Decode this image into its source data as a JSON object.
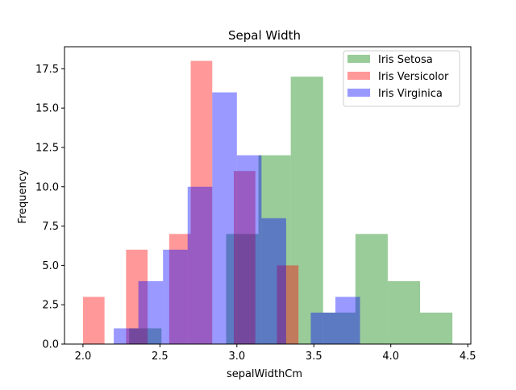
{
  "chart_data": {
    "type": "bar",
    "chart_kind": "overlapping histogram",
    "title": "Sepal Width",
    "xlabel": "sepalWidthCm",
    "ylabel": "Frequency",
    "xlim": [
      1.88,
      4.52
    ],
    "ylim": [
      0,
      18.9
    ],
    "x_ticks": [
      2.0,
      2.5,
      3.0,
      3.5,
      4.0,
      4.5
    ],
    "x_tick_labels": [
      "2.0",
      "2.5",
      "3.0",
      "3.5",
      "4.0",
      "4.5"
    ],
    "y_ticks": [
      0,
      2.5,
      5,
      7.5,
      10,
      12.5,
      15,
      17.5
    ],
    "y_tick_labels": [
      "0.0",
      "2.5",
      "5.0",
      "7.5",
      "10.0",
      "12.5",
      "15.0",
      "17.5"
    ],
    "grid": false,
    "legend_position": "top-right",
    "series": [
      {
        "name": "Iris Setosa",
        "color": "#008000",
        "opacity": 0.4,
        "bin_edges": [
          2.3,
          2.51,
          2.72,
          2.93,
          3.14,
          3.35,
          3.56,
          3.77,
          3.98,
          4.19,
          4.4
        ],
        "counts": [
          1,
          0,
          0,
          7,
          12,
          17,
          2,
          7,
          4,
          2
        ]
      },
      {
        "name": "Iris Versicolor",
        "color": "#ff0000",
        "opacity": 0.4,
        "bin_edges": [
          2.0,
          2.14,
          2.28,
          2.42,
          2.56,
          2.7,
          2.84,
          2.98,
          3.12,
          3.26,
          3.4
        ],
        "counts": [
          3,
          0,
          6,
          0,
          7,
          18,
          0,
          11,
          0,
          5
        ]
      },
      {
        "name": "Iris Virginica",
        "color": "#0000ff",
        "opacity": 0.4,
        "bin_edges": [
          2.2,
          2.36,
          2.52,
          2.68,
          2.84,
          3.0,
          3.16,
          3.32,
          3.48,
          3.64,
          3.8
        ],
        "counts": [
          1,
          4,
          6,
          10,
          16,
          12,
          8,
          0,
          2,
          3
        ]
      }
    ]
  }
}
